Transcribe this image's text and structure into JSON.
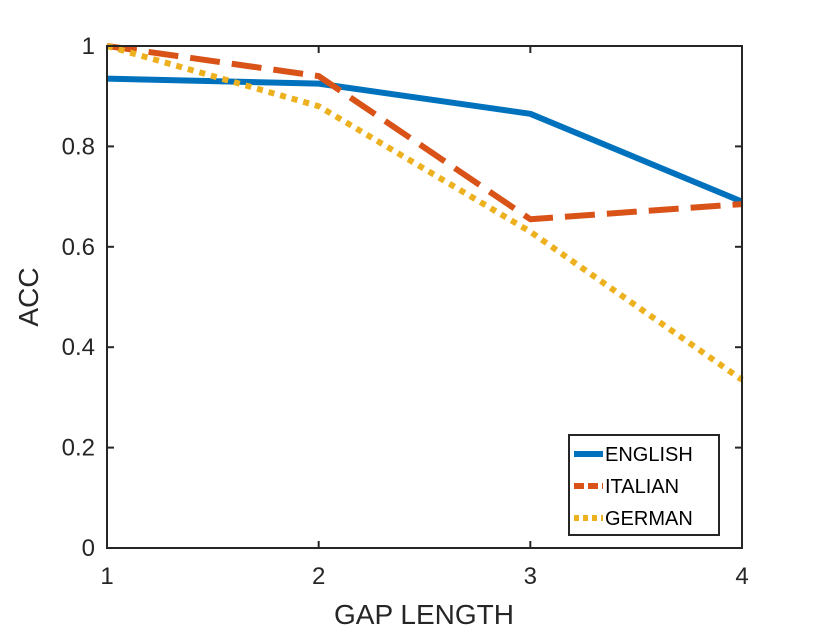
{
  "chart_data": {
    "type": "line",
    "title": "",
    "xlabel": "GAP LENGTH",
    "ylabel": "ACC",
    "x": [
      1,
      2,
      3,
      4
    ],
    "xlim": [
      1,
      4
    ],
    "ylim": [
      0,
      1
    ],
    "xticks": [
      "1",
      "2",
      "3",
      "4"
    ],
    "yticks": [
      "0",
      "0.2",
      "0.4",
      "0.6",
      "0.8",
      "1"
    ],
    "grid": false,
    "legend_position": "bottom-right",
    "series": [
      {
        "name": "ENGLISH",
        "values": [
          0.935,
          0.925,
          0.865,
          0.69
        ],
        "color": "#0072BD",
        "style": "solid"
      },
      {
        "name": "ITALIAN",
        "values": [
          1.0,
          0.94,
          0.655,
          0.685
        ],
        "color": "#D95319",
        "style": "dashed"
      },
      {
        "name": "GERMAN",
        "values": [
          1.0,
          0.88,
          0.63,
          0.335
        ],
        "color": "#EDB120",
        "style": "dotted"
      }
    ]
  }
}
